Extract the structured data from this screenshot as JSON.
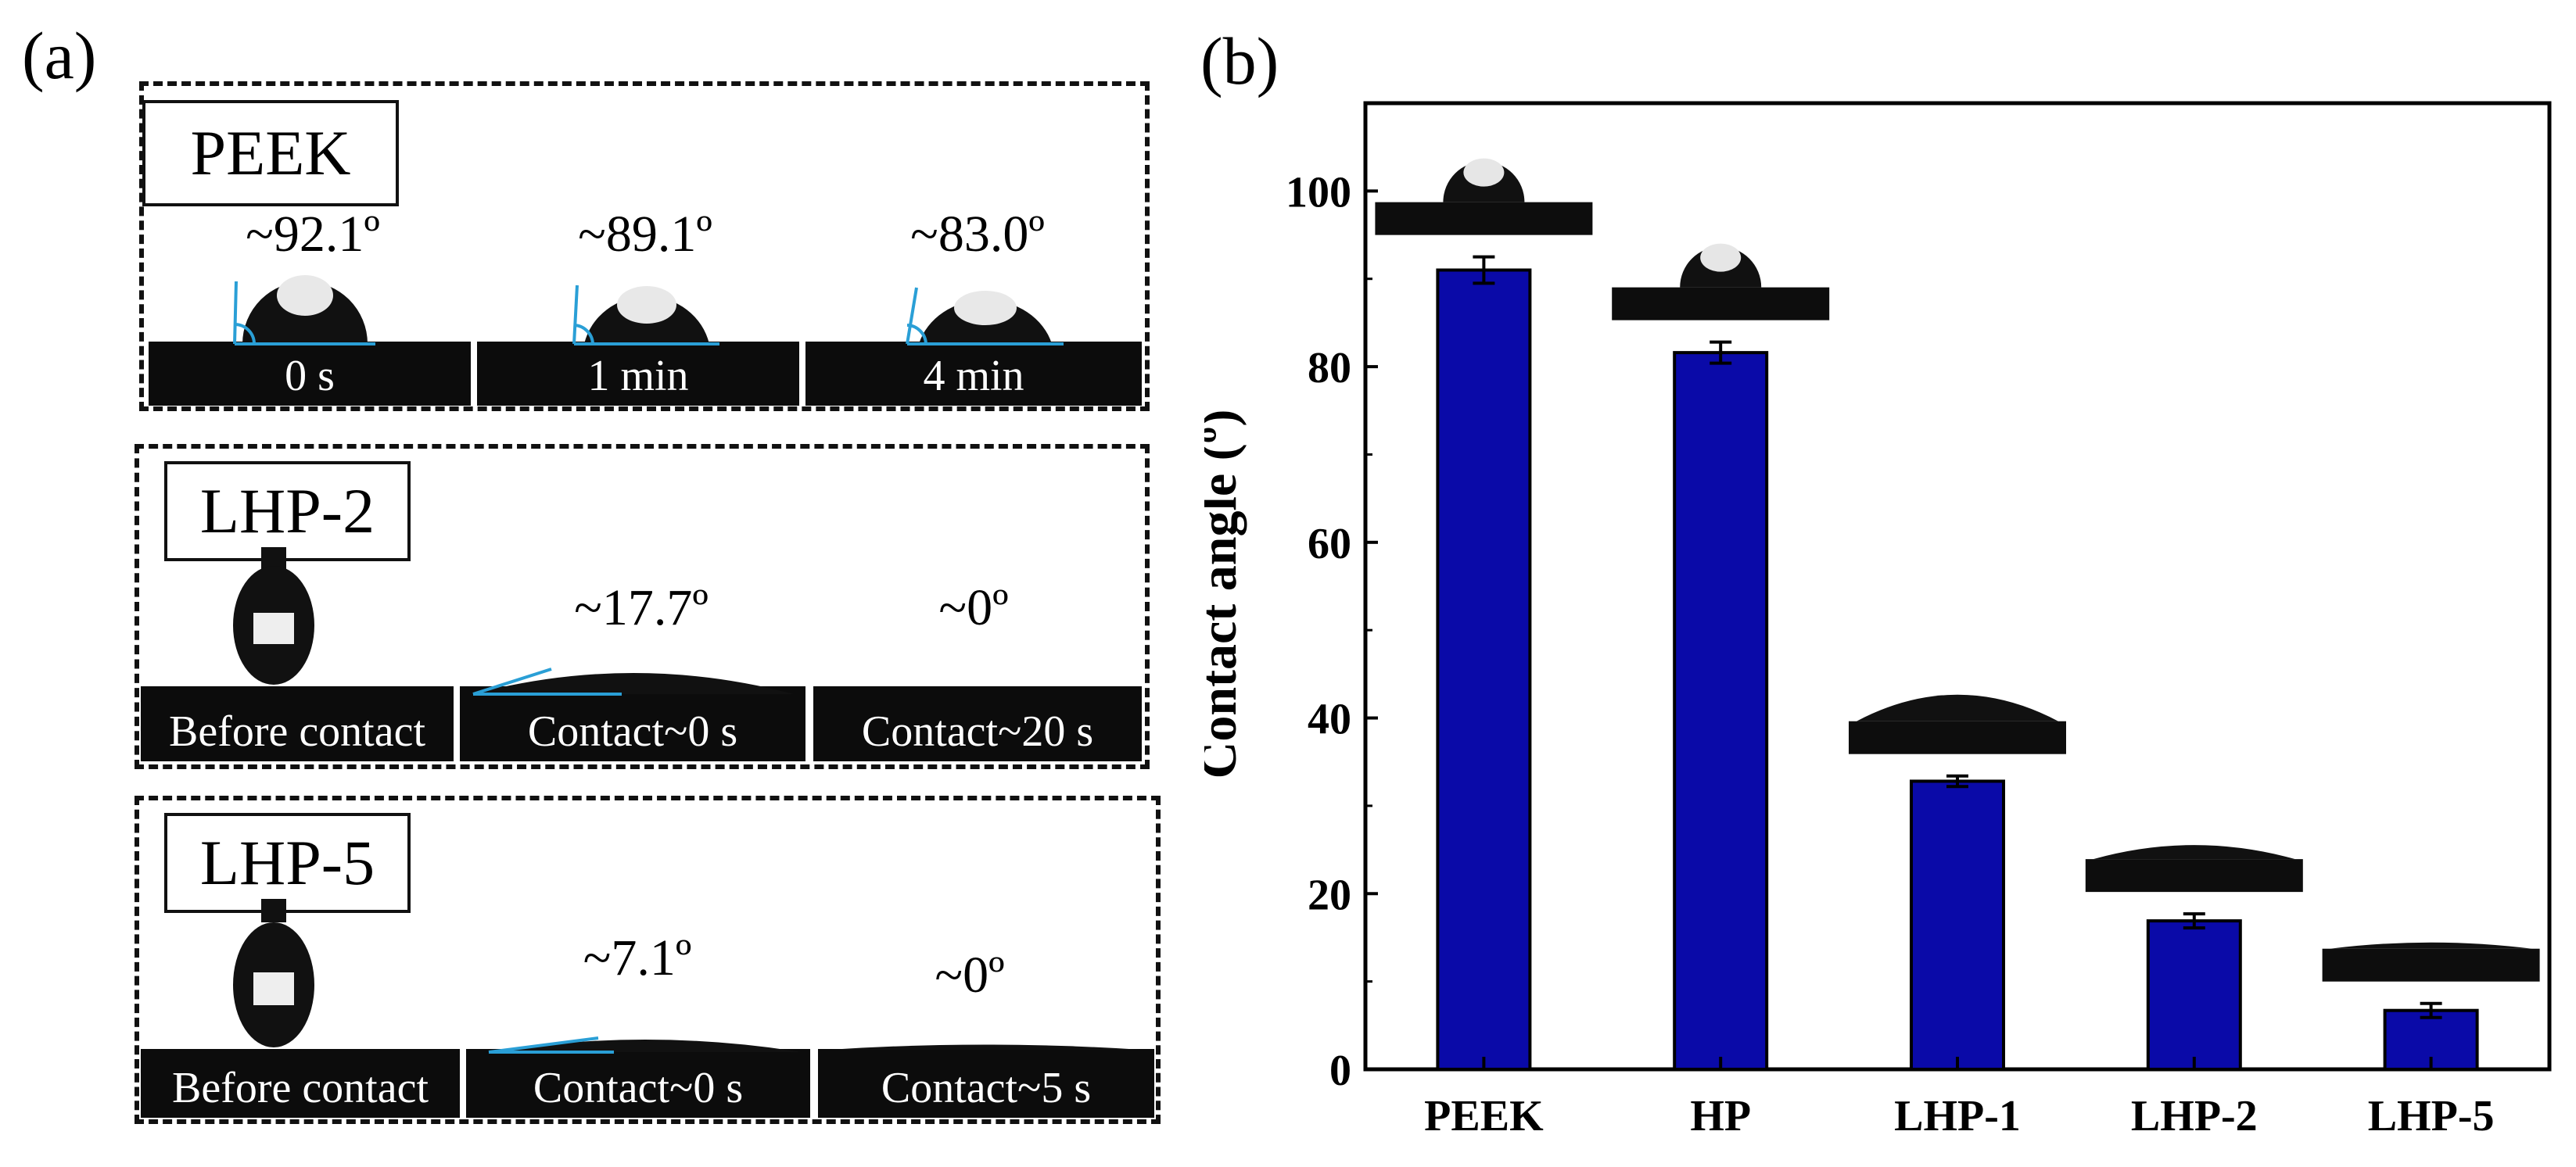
{
  "figure": {
    "panel_a_label": "(a)",
    "panel_b_label": "(b)"
  },
  "panel_a": {
    "groups": [
      {
        "sample": "PEEK",
        "frames": [
          {
            "caption": "0 s",
            "angle": "~92.1º"
          },
          {
            "caption": "1 min",
            "angle": "~89.1º"
          },
          {
            "caption": "4 min",
            "angle": "~83.0º"
          }
        ]
      },
      {
        "sample": "LHP-2",
        "frames": [
          {
            "caption": "Before contact",
            "angle": ""
          },
          {
            "caption": "Contact~0 s",
            "angle": "~17.7º"
          },
          {
            "caption": "Contact~20 s",
            "angle": "~0º"
          }
        ]
      },
      {
        "sample": "LHP-5",
        "frames": [
          {
            "caption": "Before contact",
            "angle": ""
          },
          {
            "caption": "Contact~0 s",
            "angle": "~7.1º"
          },
          {
            "caption": "Contact~5 s",
            "angle": "~0º"
          }
        ]
      }
    ],
    "colors": {
      "angle_line": "#2a9fd6",
      "photo_bg": "#0c0c0c"
    }
  },
  "chart_data": {
    "type": "bar",
    "categories": [
      "PEEK",
      "HP",
      "LHP-1",
      "LHP-2",
      "LHP-5"
    ],
    "values": [
      91.0,
      81.6,
      32.8,
      16.9,
      6.7
    ],
    "errors": [
      1.5,
      1.2,
      0.6,
      0.8,
      0.8
    ],
    "ylabel": "Contact angle (º)",
    "ylim": [
      0,
      110
    ],
    "yticks": [
      0,
      20,
      40,
      60,
      80,
      100
    ],
    "bar_color": "#0a0aa8",
    "inset_images": [
      "droplet-sphere",
      "droplet-sphere",
      "droplet-flat",
      "droplet-flatter",
      "droplet-film"
    ]
  }
}
